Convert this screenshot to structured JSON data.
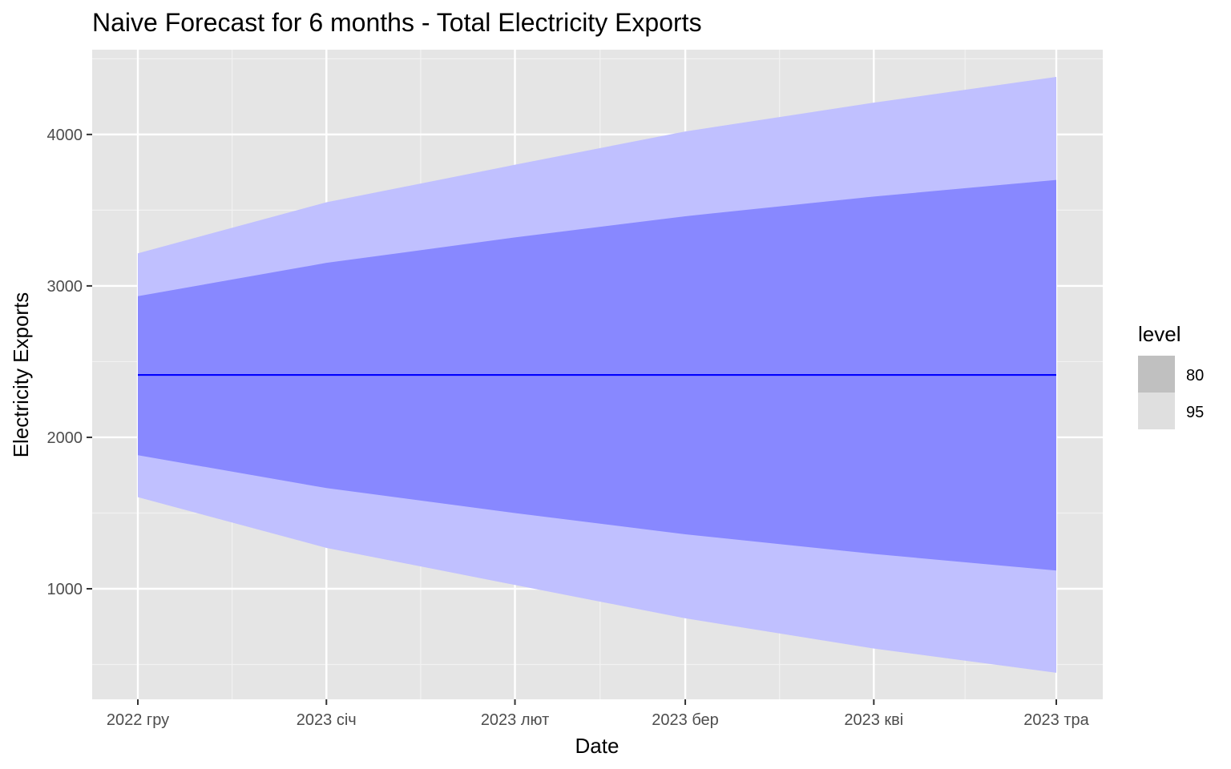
{
  "chart_data": {
    "type": "area",
    "title": "Naive Forecast for 6 months - Total Electricity Exports",
    "xlabel": "Date",
    "ylabel": "Electricity Exports",
    "x": [
      "2022 гру",
      "2023 січ",
      "2023 лют",
      "2023 бер",
      "2023 кві",
      "2023 тра"
    ],
    "x_days": [
      0,
      31,
      62,
      90,
      121,
      151
    ],
    "forecast": {
      "values": [
        2412,
        2412,
        2412,
        2412,
        2412,
        2412
      ],
      "color": "#0000ff"
    },
    "intervals": [
      {
        "level": "80",
        "lower": [
          1882,
          1665,
          1500,
          1360,
          1230,
          1120
        ],
        "upper": [
          2932,
          3152,
          3320,
          3460,
          3590,
          3700
        ],
        "color": "#8888ff"
      },
      {
        "level": "95",
        "lower": [
          1605,
          1270,
          1025,
          805,
          605,
          445
        ],
        "upper": [
          3215,
          3552,
          3800,
          4020,
          4210,
          4380
        ],
        "color": "#c0c0ff"
      }
    ],
    "y_ticks": [
      1000,
      2000,
      3000,
      4000
    ],
    "ylim": [
      270,
      4560
    ],
    "grid": true,
    "panel_background": "#e5e5e5",
    "legend": {
      "title": "level",
      "placement": "right",
      "items": [
        {
          "label": "80",
          "swatch": "#c0c0c0"
        },
        {
          "label": "95",
          "swatch": "#dfdfdf"
        }
      ]
    }
  }
}
